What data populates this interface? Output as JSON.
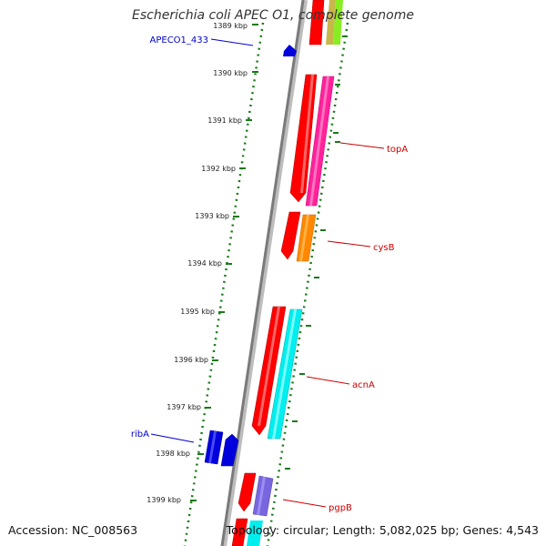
{
  "title": "Escherichia coli APEC O1, complete genome",
  "footer": {
    "accession": "Accession: NC_008563",
    "stats": "Topology: circular; Length: 5,082,025 bp; Genes: 4,543"
  },
  "ticks": [
    "1389 kbp",
    "1390 kbp",
    "1391 kbp",
    "1392 kbp",
    "1393 kbp",
    "1394 kbp",
    "1395 kbp",
    "1396 kbp",
    "1397 kbp",
    "1398 kbp",
    "1399 kbp"
  ],
  "genes": [
    {
      "name": "APECO1_433",
      "side": "left",
      "color": "#0000cc"
    },
    {
      "name": "topA",
      "side": "right",
      "color": "#cc0000"
    },
    {
      "name": "cysB",
      "side": "right",
      "color": "#cc0000"
    },
    {
      "name": "acnA",
      "side": "right",
      "color": "#cc0000"
    },
    {
      "name": "ribA",
      "side": "left",
      "color": "#0000cc"
    },
    {
      "name": "pgpB",
      "side": "right",
      "color": "#cc0000"
    }
  ],
  "colors": {
    "backbone": "#888888",
    "tick": "#1a7a1a",
    "forward_strand": "#ff0000",
    "reverse_strand": "#0000dd"
  }
}
